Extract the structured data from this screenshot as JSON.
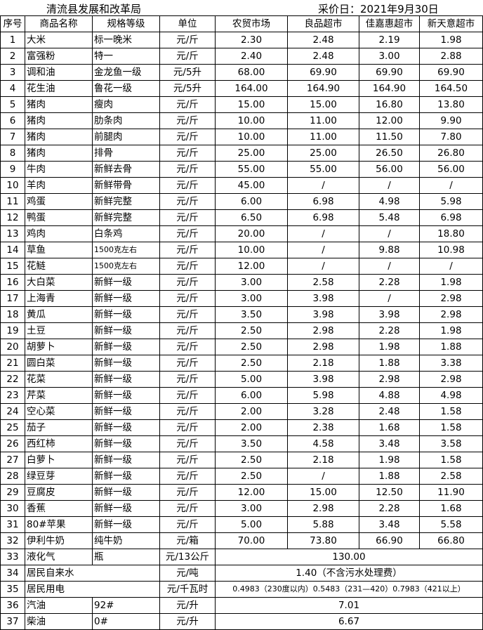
{
  "title": {
    "org": "清流县发展和改革局",
    "date": "采价日：2021年9月30日"
  },
  "headers": [
    "序号",
    "商品名称",
    "规格等级",
    "单位",
    "农贸市场",
    "良品超市",
    "佳嘉惠超市",
    "新天意超市"
  ],
  "rows": [
    {
      "no": "1",
      "name": "大米",
      "spec": "标一晚米",
      "unit": "元/斤",
      "prices": [
        "2.30",
        "2.48",
        "2.19",
        "1.98"
      ]
    },
    {
      "no": "2",
      "name": "富强粉",
      "spec": "特一",
      "unit": "元/斤",
      "prices": [
        "2.40",
        "2.48",
        "3.00",
        "2.88"
      ]
    },
    {
      "no": "3",
      "name": "调和油",
      "spec": "金龙鱼一级",
      "unit": "元/5升",
      "prices": [
        "68.00",
        "69.90",
        "69.90",
        "69.90"
      ]
    },
    {
      "no": "4",
      "name": "花生油",
      "spec": "鲁花一级",
      "unit": "元/5升",
      "prices": [
        "164.00",
        "164.90",
        "164.90",
        "164.50"
      ]
    },
    {
      "no": "5",
      "name": "猪肉",
      "spec": "瘦肉",
      "unit": "元/斤",
      "prices": [
        "15.00",
        "15.00",
        "16.80",
        "13.80"
      ]
    },
    {
      "no": "6",
      "name": "猪肉",
      "spec": "肋条肉",
      "unit": "元/斤",
      "prices": [
        "10.00",
        "11.00",
        "12.00",
        "9.90"
      ]
    },
    {
      "no": "7",
      "name": "猪肉",
      "spec": "前腿肉",
      "unit": "元/斤",
      "prices": [
        "10.00",
        "11.00",
        "11.50",
        "7.80"
      ]
    },
    {
      "no": "8",
      "name": "猪肉",
      "spec": "排骨",
      "unit": "元/斤",
      "prices": [
        "25.00",
        "25.00",
        "26.50",
        "26.80"
      ]
    },
    {
      "no": "9",
      "name": "牛肉",
      "spec": "新鲜去骨",
      "unit": "元/斤",
      "prices": [
        "55.00",
        "55.00",
        "56.00",
        "56.00"
      ]
    },
    {
      "no": "10",
      "name": "羊肉",
      "spec": "新鲜带骨",
      "unit": "元/斤",
      "prices": [
        "45.00",
        "/",
        "/",
        "/"
      ]
    },
    {
      "no": "11",
      "name": "鸡蛋",
      "spec": "新鲜完整",
      "unit": "元/斤",
      "prices": [
        "6.00",
        "6.98",
        "4.98",
        "5.98"
      ]
    },
    {
      "no": "12",
      "name": "鸭蛋",
      "spec": "新鲜完整",
      "unit": "元/斤",
      "prices": [
        "6.50",
        "6.98",
        "5.48",
        "6.98"
      ]
    },
    {
      "no": "13",
      "name": "鸡肉",
      "spec": "白条鸡",
      "unit": "元/斤",
      "prices": [
        "20.00",
        "/",
        "/",
        "18.80"
      ]
    },
    {
      "no": "14",
      "name": "草鱼",
      "spec": "1500克左右",
      "unit": "元/斤",
      "prices": [
        "10.00",
        "/",
        "9.88",
        "10.98"
      ]
    },
    {
      "no": "15",
      "name": "花鲢",
      "spec": "1500克左右",
      "unit": "元/斤",
      "prices": [
        "12.00",
        "/",
        "/",
        "/"
      ]
    },
    {
      "no": "16",
      "name": "大白菜",
      "spec": "新鲜一级",
      "unit": "元/斤",
      "prices": [
        "3.00",
        "2.58",
        "2.28",
        "1.98"
      ]
    },
    {
      "no": "17",
      "name": "上海青",
      "spec": "新鲜一级",
      "unit": "元/斤",
      "prices": [
        "3.00",
        "3.98",
        "/",
        "2.98"
      ]
    },
    {
      "no": "18",
      "name": "黄瓜",
      "spec": "新鲜一级",
      "unit": "元/斤",
      "prices": [
        "3.50",
        "3.98",
        "3.98",
        "2.98"
      ]
    },
    {
      "no": "19",
      "name": "土豆",
      "spec": "新鲜一级",
      "unit": "元/斤",
      "prices": [
        "2.50",
        "2.98",
        "2.28",
        "1.98"
      ]
    },
    {
      "no": "20",
      "name": "胡萝卜",
      "spec": "新鲜一级",
      "unit": "元/斤",
      "prices": [
        "2.50",
        "2.98",
        "1.98",
        "1.88"
      ]
    },
    {
      "no": "21",
      "name": "圆白菜",
      "spec": "新鲜一级",
      "unit": "元/斤",
      "prices": [
        "2.50",
        "2.18",
        "1.88",
        "3.38"
      ]
    },
    {
      "no": "22",
      "name": "花菜",
      "spec": "新鲜一级",
      "unit": "元/斤",
      "prices": [
        "5.00",
        "3.98",
        "2.98",
        "2.98"
      ]
    },
    {
      "no": "23",
      "name": "芹菜",
      "spec": "新鲜一级",
      "unit": "元/斤",
      "prices": [
        "6.00",
        "5.98",
        "4.88",
        "4.98"
      ]
    },
    {
      "no": "24",
      "name": "空心菜",
      "spec": "新鲜一级",
      "unit": "元/斤",
      "prices": [
        "2.00",
        "3.28",
        "2.48",
        "1.58"
      ]
    },
    {
      "no": "25",
      "name": "茄子",
      "spec": "新鲜一级",
      "unit": "元/斤",
      "prices": [
        "2.00",
        "2.38",
        "1.68",
        "1.58"
      ]
    },
    {
      "no": "26",
      "name": "西红柿",
      "spec": "新鲜一级",
      "unit": "元/斤",
      "prices": [
        "3.50",
        "4.58",
        "3.48",
        "3.58"
      ]
    },
    {
      "no": "27",
      "name": "白萝卜",
      "spec": "新鲜一级",
      "unit": "元/斤",
      "prices": [
        "2.50",
        "2.18",
        "1.98",
        "1.58"
      ]
    },
    {
      "no": "28",
      "name": "绿豆芽",
      "spec": "新鲜一级",
      "unit": "元/斤",
      "prices": [
        "2.50",
        "/",
        "1.88",
        "2.58"
      ]
    },
    {
      "no": "29",
      "name": "豆腐皮",
      "spec": "新鲜一级",
      "unit": "元/斤",
      "prices": [
        "12.00",
        "15.00",
        "12.50",
        "11.90"
      ]
    },
    {
      "no": "30",
      "name": "香蕉",
      "spec": "新鲜一级",
      "unit": "元/斤",
      "prices": [
        "3.00",
        "2.98",
        "2.28",
        "1.68"
      ]
    },
    {
      "no": "31",
      "name": "80#苹果",
      "spec": "新鲜一级",
      "unit": "元/斤",
      "prices": [
        "5.00",
        "5.88",
        "3.48",
        "5.58"
      ]
    },
    {
      "no": "32",
      "name": "伊利牛奶",
      "spec": "纯牛奶",
      "unit": "元/箱",
      "prices": [
        "70.00",
        "73.80",
        "66.90",
        "66.80"
      ]
    },
    {
      "no": "33",
      "name": "液化气",
      "spec": "瓶",
      "unit": "元/13公斤",
      "price": "130.00"
    },
    {
      "no": "34",
      "name": "居民自来水",
      "unit": "元/吨",
      "price": "1.40（不含污水处理费）"
    },
    {
      "no": "35",
      "name": "居民用电",
      "unit": "元/千瓦时",
      "price": "0.4983（230度以内）0.5483（231—420）0.7983（421以上）"
    },
    {
      "no": "36",
      "name": "汽油",
      "spec": "92#",
      "unit": "元/升",
      "price": "7.01"
    },
    {
      "no": "37",
      "name": "柴油",
      "spec": "0#",
      "unit": "元/升",
      "price": "6.67"
    }
  ]
}
